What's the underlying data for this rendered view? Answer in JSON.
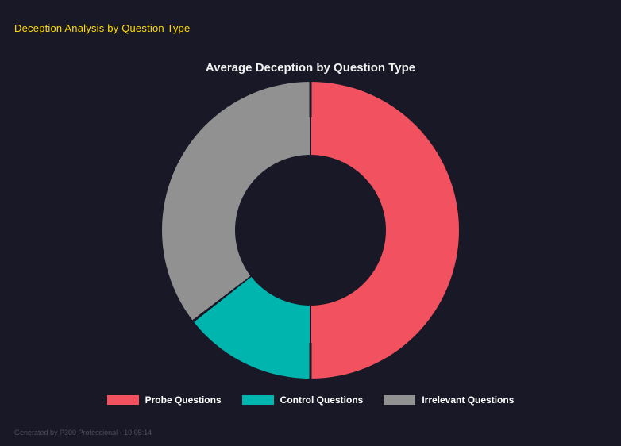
{
  "header": {
    "title": "Deception Analysis by Question Type",
    "color": "#ffdd00"
  },
  "chart_data": {
    "type": "pie",
    "variant": "donut",
    "title": "Average Deception by Question Type",
    "categories": [
      "Probe Questions",
      "Control Questions",
      "Irrelevant Questions"
    ],
    "values": [
      50,
      14.5,
      35.5
    ],
    "values_note": "percent share estimated from arc angles",
    "colors": [
      "#f2525f",
      "#00b5ad",
      "#919191"
    ],
    "legend_position": "bottom",
    "donut_hole_ratio": 0.49,
    "start_angle_deg": 0,
    "direction": "clockwise",
    "background": "#181826"
  },
  "footer": {
    "note": "Generated by P300 Professional - 10:05:14"
  }
}
